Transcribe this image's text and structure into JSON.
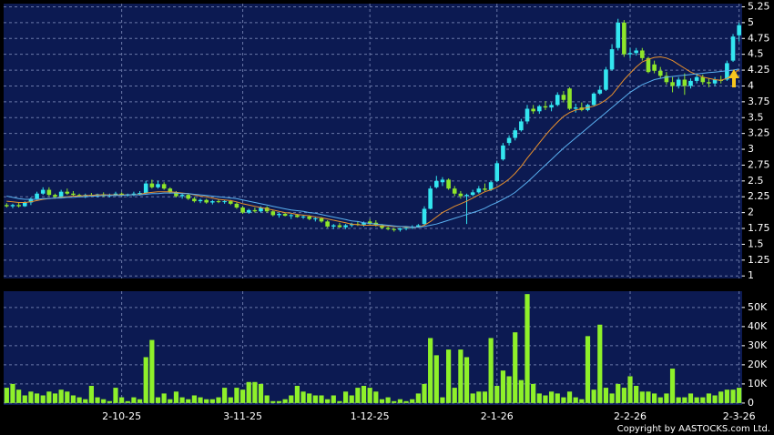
{
  "chart_data": [
    {
      "type": "candlestick",
      "up_color": "#33e6f0",
      "down_color": "#8ee62a",
      "grid": true,
      "categories": [
        null,
        null,
        null,
        null,
        null,
        null,
        null,
        null,
        null,
        null,
        null,
        null,
        null,
        null,
        null,
        null,
        null,
        null,
        null,
        "2-10-25",
        null,
        null,
        null,
        null,
        null,
        null,
        null,
        null,
        null,
        null,
        null,
        null,
        null,
        null,
        null,
        null,
        null,
        null,
        null,
        "3-11-25",
        null,
        null,
        null,
        null,
        null,
        null,
        null,
        null,
        null,
        null,
        null,
        null,
        null,
        null,
        null,
        null,
        null,
        null,
        null,
        null,
        "1-12-25",
        null,
        null,
        null,
        null,
        null,
        null,
        null,
        null,
        null,
        null,
        null,
        null,
        null,
        null,
        null,
        null,
        null,
        null,
        null,
        null,
        "2-1-26",
        null,
        null,
        null,
        null,
        null,
        null,
        null,
        null,
        null,
        null,
        null,
        null,
        null,
        null,
        null,
        null,
        null,
        null,
        null,
        null,
        null,
        "2-2-26",
        null,
        null,
        null,
        null,
        null,
        null,
        null,
        null,
        null,
        null,
        null,
        null,
        null,
        null,
        null,
        null,
        null,
        "2-3-26"
      ],
      "ohlc": [
        [
          2.12,
          2.15,
          2.08,
          2.1
        ],
        [
          2.1,
          2.14,
          2.07,
          2.12
        ],
        [
          2.12,
          2.16,
          2.08,
          2.1
        ],
        [
          2.1,
          2.18,
          2.09,
          2.16
        ],
        [
          2.16,
          2.24,
          2.12,
          2.22
        ],
        [
          2.22,
          2.33,
          2.2,
          2.3
        ],
        [
          2.3,
          2.4,
          2.28,
          2.36
        ],
        [
          2.36,
          2.4,
          2.26,
          2.28
        ],
        [
          2.28,
          2.3,
          2.22,
          2.25
        ],
        [
          2.25,
          2.36,
          2.24,
          2.33
        ],
        [
          2.33,
          2.38,
          2.28,
          2.3
        ],
        [
          2.3,
          2.34,
          2.26,
          2.28
        ],
        [
          2.28,
          2.3,
          2.24,
          2.26
        ],
        [
          2.26,
          2.3,
          2.23,
          2.28
        ],
        [
          2.28,
          2.31,
          2.25,
          2.27
        ],
        [
          2.27,
          2.3,
          2.24,
          2.29
        ],
        [
          2.29,
          2.32,
          2.25,
          2.26
        ],
        [
          2.26,
          2.3,
          2.24,
          2.28
        ],
        [
          2.28,
          2.33,
          2.26,
          2.3
        ],
        [
          2.3,
          2.32,
          2.26,
          2.27
        ],
        [
          2.27,
          2.3,
          2.25,
          2.29
        ],
        [
          2.29,
          2.33,
          2.26,
          2.3
        ],
        [
          2.3,
          2.34,
          2.27,
          2.31
        ],
        [
          2.31,
          2.5,
          2.3,
          2.46
        ],
        [
          2.46,
          2.52,
          2.38,
          2.4
        ],
        [
          2.4,
          2.5,
          2.38,
          2.45
        ],
        [
          2.45,
          2.48,
          2.36,
          2.38
        ],
        [
          2.38,
          2.4,
          2.3,
          2.32
        ],
        [
          2.32,
          2.34,
          2.24,
          2.26
        ],
        [
          2.26,
          2.3,
          2.22,
          2.28
        ],
        [
          2.28,
          2.3,
          2.2,
          2.22
        ],
        [
          2.22,
          2.25,
          2.16,
          2.18
        ],
        [
          2.18,
          2.22,
          2.15,
          2.2
        ],
        [
          2.2,
          2.22,
          2.14,
          2.16
        ],
        [
          2.16,
          2.2,
          2.13,
          2.18
        ],
        [
          2.18,
          2.21,
          2.15,
          2.17
        ],
        [
          2.17,
          2.2,
          2.14,
          2.18
        ],
        [
          2.18,
          2.2,
          2.12,
          2.14
        ],
        [
          2.14,
          2.16,
          2.06,
          2.08
        ],
        [
          2.08,
          2.1,
          1.98,
          2.0
        ],
        [
          2.0,
          2.06,
          1.98,
          2.04
        ],
        [
          2.04,
          2.08,
          2.0,
          2.02
        ],
        [
          2.02,
          2.1,
          2.0,
          2.08
        ],
        [
          2.08,
          2.1,
          2.0,
          2.02
        ],
        [
          2.02,
          2.04,
          1.94,
          1.96
        ],
        [
          1.96,
          2.0,
          1.92,
          1.98
        ],
        [
          1.98,
          2.0,
          1.94,
          1.95
        ],
        [
          1.95,
          1.98,
          1.9,
          1.96
        ],
        [
          1.96,
          1.98,
          1.92,
          1.93
        ],
        [
          1.93,
          1.96,
          1.9,
          1.94
        ],
        [
          1.94,
          1.96,
          1.88,
          1.9
        ],
        [
          1.9,
          1.94,
          1.86,
          1.91
        ],
        [
          1.91,
          1.93,
          1.84,
          1.86
        ],
        [
          1.86,
          1.88,
          1.76,
          1.78
        ],
        [
          1.78,
          1.82,
          1.74,
          1.8
        ],
        [
          1.8,
          1.84,
          1.76,
          1.77
        ],
        [
          1.77,
          1.82,
          1.74,
          1.8
        ],
        [
          1.8,
          1.84,
          1.77,
          1.82
        ],
        [
          1.82,
          1.86,
          1.79,
          1.81
        ],
        [
          1.81,
          1.86,
          1.78,
          1.84
        ],
        [
          1.86,
          1.9,
          1.8,
          1.82
        ],
        [
          1.84,
          1.88,
          1.78,
          1.8
        ],
        [
          1.8,
          1.82,
          1.74,
          1.76
        ],
        [
          1.76,
          1.78,
          1.72,
          1.74
        ],
        [
          1.74,
          1.76,
          1.7,
          1.73
        ],
        [
          1.73,
          1.76,
          1.7,
          1.75
        ],
        [
          1.75,
          1.78,
          1.72,
          1.76
        ],
        [
          1.76,
          1.8,
          1.74,
          1.78
        ],
        [
          1.78,
          1.82,
          1.76,
          1.8
        ],
        [
          1.82,
          2.1,
          1.8,
          2.06
        ],
        [
          2.06,
          2.42,
          2.05,
          2.38
        ],
        [
          2.4,
          2.58,
          2.38,
          2.5
        ],
        [
          2.48,
          2.56,
          2.42,
          2.52
        ],
        [
          2.52,
          2.54,
          2.36,
          2.38
        ],
        [
          2.38,
          2.42,
          2.26,
          2.3
        ],
        [
          2.3,
          2.34,
          2.22,
          2.26
        ],
        [
          2.26,
          2.3,
          1.82,
          2.28
        ],
        [
          2.28,
          2.36,
          2.26,
          2.32
        ],
        [
          2.32,
          2.42,
          2.3,
          2.38
        ],
        [
          2.38,
          2.46,
          2.34,
          2.36
        ],
        [
          2.36,
          2.5,
          2.34,
          2.48
        ],
        [
          2.5,
          2.82,
          2.48,
          2.78
        ],
        [
          2.84,
          3.1,
          2.82,
          3.06
        ],
        [
          3.1,
          3.22,
          3.06,
          3.18
        ],
        [
          3.18,
          3.34,
          3.14,
          3.3
        ],
        [
          3.3,
          3.48,
          3.28,
          3.44
        ],
        [
          3.44,
          3.7,
          3.4,
          3.64
        ],
        [
          3.64,
          3.7,
          3.56,
          3.6
        ],
        [
          3.6,
          3.7,
          3.56,
          3.68
        ],
        [
          3.68,
          3.76,
          3.62,
          3.66
        ],
        [
          3.66,
          3.74,
          3.6,
          3.7
        ],
        [
          3.7,
          3.9,
          3.68,
          3.86
        ],
        [
          3.86,
          3.92,
          3.74,
          3.78
        ],
        [
          3.96,
          3.98,
          3.62,
          3.64
        ],
        [
          3.64,
          3.72,
          3.58,
          3.66
        ],
        [
          3.66,
          3.74,
          3.6,
          3.62
        ],
        [
          3.62,
          3.72,
          3.6,
          3.7
        ],
        [
          3.7,
          3.9,
          3.68,
          3.88
        ],
        [
          3.88,
          4.0,
          3.86,
          3.94
        ],
        [
          3.94,
          4.3,
          3.92,
          4.26
        ],
        [
          4.26,
          4.66,
          4.24,
          4.58
        ],
        [
          4.6,
          5.06,
          4.56,
          5.0
        ],
        [
          5.0,
          5.04,
          4.46,
          4.5
        ],
        [
          4.5,
          4.6,
          4.44,
          4.52
        ],
        [
          4.52,
          4.6,
          4.48,
          4.56
        ],
        [
          4.56,
          4.6,
          4.4,
          4.44
        ],
        [
          4.44,
          4.46,
          4.2,
          4.22
        ],
        [
          4.34,
          4.4,
          4.2,
          4.24
        ],
        [
          4.24,
          4.3,
          4.12,
          4.16
        ],
        [
          4.16,
          4.22,
          4.02,
          4.06
        ],
        [
          4.06,
          4.14,
          3.9,
          4.0
        ],
        [
          4.0,
          4.14,
          3.96,
          4.1
        ],
        [
          4.1,
          4.2,
          3.86,
          4.0
        ],
        [
          4.0,
          4.12,
          3.96,
          4.08
        ],
        [
          4.08,
          4.2,
          4.04,
          4.14
        ],
        [
          4.14,
          4.18,
          4.02,
          4.06
        ],
        [
          4.06,
          4.12,
          3.98,
          4.04
        ],
        [
          4.04,
          4.14,
          4.0,
          4.1
        ],
        [
          4.1,
          4.16,
          4.04,
          4.08
        ],
        [
          4.1,
          4.4,
          4.08,
          4.36
        ],
        [
          4.4,
          4.82,
          4.38,
          4.78
        ],
        [
          4.8,
          5.0,
          4.7,
          4.96
        ]
      ],
      "lines": [
        {
          "color": "#e8902c",
          "values": [
            2.18,
            2.17,
            2.16,
            2.16,
            2.17,
            2.19,
            2.21,
            2.22,
            2.23,
            2.24,
            2.25,
            2.26,
            2.26,
            2.27,
            2.27,
            2.28,
            2.28,
            2.28,
            2.28,
            2.28,
            2.28,
            2.28,
            2.29,
            2.31,
            2.32,
            2.33,
            2.33,
            2.33,
            2.32,
            2.31,
            2.3,
            2.28,
            2.26,
            2.25,
            2.23,
            2.21,
            2.2,
            2.19,
            2.17,
            2.14,
            2.12,
            2.1,
            2.08,
            2.06,
            2.04,
            2.02,
            2.0,
            1.99,
            1.97,
            1.96,
            1.95,
            1.93,
            1.92,
            1.9,
            1.88,
            1.86,
            1.84,
            1.82,
            1.81,
            1.8,
            1.8,
            1.8,
            1.79,
            1.79,
            1.78,
            1.78,
            1.77,
            1.77,
            1.77,
            1.8,
            1.86,
            1.93,
            2.0,
            2.05,
            2.1,
            2.14,
            2.18,
            2.23,
            2.28,
            2.33,
            2.36,
            2.4,
            2.46,
            2.53,
            2.62,
            2.73,
            2.86,
            2.98,
            3.1,
            3.22,
            3.33,
            3.43,
            3.52,
            3.58,
            3.62,
            3.64,
            3.66,
            3.68,
            3.72,
            3.78,
            3.86,
            3.98,
            4.1,
            4.2,
            4.3,
            4.38,
            4.42,
            4.45,
            4.46,
            4.44,
            4.4,
            4.34,
            4.28,
            4.22,
            4.18,
            4.14,
            4.12,
            4.1,
            4.09,
            4.12,
            4.18,
            4.26
          ]
        },
        {
          "color": "#5ab0f0",
          "values": [
            2.26,
            2.24,
            2.22,
            2.21,
            2.21,
            2.21,
            2.22,
            2.22,
            2.23,
            2.23,
            2.24,
            2.24,
            2.25,
            2.25,
            2.26,
            2.26,
            2.27,
            2.27,
            2.27,
            2.27,
            2.28,
            2.28,
            2.28,
            2.29,
            2.3,
            2.3,
            2.31,
            2.31,
            2.31,
            2.3,
            2.3,
            2.29,
            2.28,
            2.27,
            2.26,
            2.25,
            2.24,
            2.23,
            2.22,
            2.2,
            2.18,
            2.16,
            2.14,
            2.12,
            2.1,
            2.08,
            2.06,
            2.04,
            2.03,
            2.02,
            2.0,
            1.99,
            1.97,
            1.95,
            1.93,
            1.91,
            1.89,
            1.87,
            1.86,
            1.84,
            1.83,
            1.82,
            1.81,
            1.8,
            1.79,
            1.78,
            1.78,
            1.77,
            1.77,
            1.78,
            1.8,
            1.82,
            1.85,
            1.88,
            1.91,
            1.94,
            1.97,
            2.0,
            2.03,
            2.07,
            2.12,
            2.16,
            2.21,
            2.26,
            2.32,
            2.4,
            2.48,
            2.57,
            2.66,
            2.75,
            2.84,
            2.93,
            3.02,
            3.1,
            3.18,
            3.26,
            3.34,
            3.42,
            3.5,
            3.58,
            3.66,
            3.74,
            3.82,
            3.9,
            3.96,
            4.02,
            4.06,
            4.1,
            4.12,
            4.14,
            4.15,
            4.16,
            4.17,
            4.18,
            4.19,
            4.2,
            4.21,
            4.22,
            4.23,
            4.24,
            4.25,
            4.27
          ]
        }
      ],
      "ylim": [
        0.96,
        5.3
      ],
      "yticks": [
        1,
        1.25,
        1.5,
        1.75,
        2,
        2.25,
        2.5,
        2.75,
        3,
        3.25,
        3.5,
        3.75,
        4,
        4.25,
        4.5,
        4.75,
        5,
        5.25
      ]
    },
    {
      "type": "bar",
      "color": "#8ef02a",
      "grid": true,
      "values": [
        8000,
        10000,
        7000,
        4000,
        6000,
        5000,
        4000,
        6000,
        5000,
        7000,
        6000,
        4000,
        3000,
        2000,
        9000,
        3000,
        2000,
        1000,
        8000,
        3000,
        1000,
        3000,
        2000,
        24000,
        33000,
        3000,
        5000,
        2000,
        6000,
        3000,
        2000,
        4000,
        3000,
        2000,
        2000,
        3000,
        8000,
        3000,
        8000,
        7000,
        11000,
        11000,
        10000,
        4000,
        1000,
        1000,
        2000,
        4000,
        9000,
        6000,
        5000,
        4000,
        4000,
        2000,
        4000,
        1000,
        6000,
        4000,
        8000,
        9000,
        8000,
        6000,
        2000,
        3000,
        1000,
        2000,
        1000,
        2000,
        5000,
        10000,
        34000,
        25000,
        3000,
        28000,
        8000,
        28000,
        24000,
        5000,
        6000,
        6000,
        34000,
        9000,
        17000,
        14000,
        37000,
        12000,
        57000,
        10000,
        5000,
        4000,
        6000,
        5000,
        3000,
        6000,
        3000,
        2000,
        35000,
        7000,
        41000,
        8000,
        5000,
        10000,
        8000,
        14000,
        9000,
        6000,
        6000,
        5000,
        3000,
        5000,
        18000,
        3000,
        3000,
        5000,
        3000,
        3000,
        5000,
        4000,
        6000,
        7000,
        7000,
        8000
      ],
      "ylim": [
        -1000,
        58500
      ],
      "yticks": [
        0,
        {
          "value": 10000,
          "label": "10K"
        },
        {
          "value": 20000,
          "label": "20K"
        },
        {
          "value": 30000,
          "label": "30K"
        },
        {
          "value": 40000,
          "label": "40K"
        },
        {
          "value": 50000,
          "label": "50K"
        }
      ]
    },
    {
      "type": "note",
      "text": "Copyright by AASTOCKS.com Ltd."
    }
  ]
}
